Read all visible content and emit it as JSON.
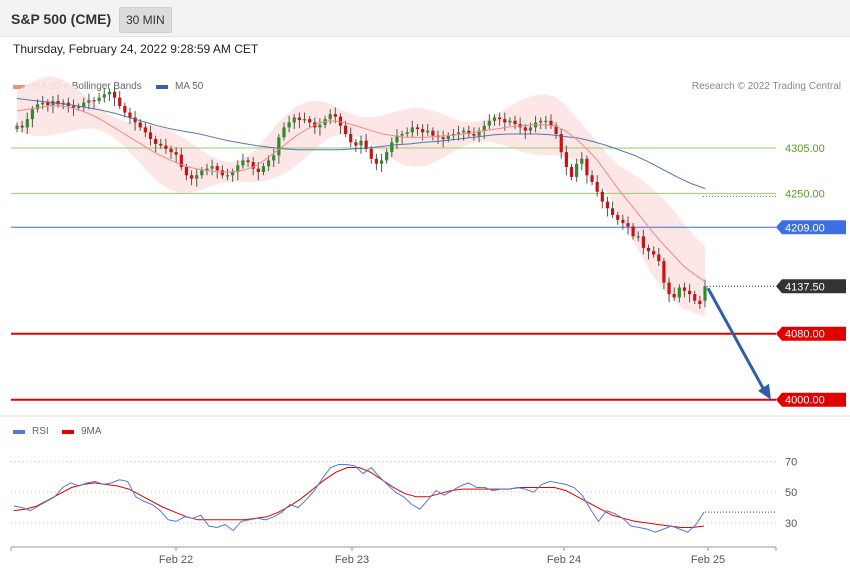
{
  "header": {
    "title": "S&P 500 (CME)",
    "interval": "30 MIN"
  },
  "timestamp": "Thursday, February 24, 2022 9:28:59 AM CET",
  "legend": {
    "ma20_label": "MA 20 + Bollinger Bands",
    "ma50_label": "MA 50",
    "credit": "Research © 2022 Trading Central",
    "rsi_label": "RSI",
    "rsi_ma_label": "9MA"
  },
  "colors": {
    "ma20": "#f28b82",
    "bands_fill": "#fde3e3",
    "ma50": "#3f5fa5",
    "up_candle": "#2e8b2e",
    "down_candle": "#cc1111",
    "resistance": "#9acd68",
    "pivot": "#3d6fe0",
    "support": "#e00000",
    "forecast_arrow": "#2f5fa8",
    "rsi": "#5577dd",
    "rsi_ma": "#e00000"
  },
  "chart_data": [
    {
      "type": "candlestick",
      "title": "S&P 500 (CME)",
      "interval": "30 MIN",
      "x_labels": [
        "Feb 22",
        "Feb 23",
        "Feb 24",
        "Feb 25"
      ],
      "ylim": [
        3990,
        4385
      ],
      "last_price": 4137.5,
      "levels": [
        {
          "value": 4305.0,
          "label": "4305.00",
          "kind": "resistance"
        },
        {
          "value": 4250.0,
          "label": "4250.00",
          "kind": "resistance"
        },
        {
          "value": 4209.0,
          "label": "4209.00",
          "kind": "pivot"
        },
        {
          "value": 4137.5,
          "label": "4137.50",
          "kind": "last"
        },
        {
          "value": 4080.0,
          "label": "4080.00",
          "kind": "support"
        },
        {
          "value": 4000.0,
          "label": "4000.00",
          "kind": "support"
        }
      ],
      "close_series": [
        4332,
        4330,
        4340,
        4352,
        4358,
        4360,
        4357,
        4362,
        4358,
        4360,
        4356,
        4354,
        4355,
        4360,
        4363,
        4362,
        4366,
        4370,
        4373,
        4366,
        4356,
        4348,
        4342,
        4336,
        4330,
        4324,
        4316,
        4310,
        4308,
        4304,
        4300,
        4297,
        4282,
        4272,
        4268,
        4272,
        4278,
        4280,
        4283,
        4278,
        4272,
        4272,
        4276,
        4284,
        4290,
        4288,
        4280,
        4276,
        4283,
        4290,
        4296,
        4318,
        4330,
        4336,
        4342,
        4339,
        4340,
        4336,
        4330,
        4333,
        4340,
        4346,
        4343,
        4332,
        4322,
        4312,
        4308,
        4314,
        4304,
        4292,
        4286,
        4290,
        4300,
        4312,
        4320,
        4322,
        4324,
        4330,
        4328,
        4324,
        4326,
        4320,
        4318,
        4316,
        4320,
        4322,
        4324,
        4326,
        4322,
        4320,
        4326,
        4332,
        4338,
        4342,
        4340,
        4336,
        4338,
        4334,
        4330,
        4326,
        4330,
        4336,
        4338,
        4338,
        4332,
        4322,
        4300,
        4282,
        4270,
        4286,
        4292,
        4272,
        4264,
        4252,
        4240,
        4232,
        4224,
        4218,
        4214,
        4210,
        4198,
        4198,
        4184,
        4180,
        4176,
        4168,
        4142,
        4128,
        4124,
        4136,
        4132,
        4128,
        4120,
        4116,
        4140
      ],
      "ma20_series": [
        4350,
        4352,
        4354,
        4356,
        4356,
        4354,
        4350,
        4345,
        4338,
        4330,
        4322,
        4314,
        4306,
        4298,
        4292,
        4286,
        4282,
        4279,
        4277,
        4276,
        4276,
        4278,
        4282,
        4290,
        4300,
        4310,
        4320,
        4328,
        4335,
        4338,
        4337,
        4334,
        4330,
        4326,
        4322,
        4320,
        4318,
        4318,
        4318,
        4319,
        4320,
        4321,
        4323,
        4325,
        4327,
        4329,
        4331,
        4332,
        4333,
        4333,
        4332,
        4326,
        4316,
        4304,
        4290,
        4272,
        4254,
        4238,
        4222,
        4205,
        4190,
        4176,
        4162,
        4152,
        4143
      ],
      "ma50_series": [
        4365,
        4363,
        4361,
        4359,
        4357,
        4354,
        4351,
        4347,
        4342,
        4337,
        4332,
        4328,
        4325,
        4322,
        4318,
        4314,
        4311,
        4308,
        4306,
        4304,
        4303,
        4303,
        4303,
        4303,
        4304,
        4305,
        4307,
        4309,
        4310,
        4312,
        4313,
        4315,
        4317,
        4319,
        4321,
        4322,
        4322,
        4322,
        4321,
        4319,
        4317,
        4313,
        4308,
        4302,
        4296,
        4288,
        4279,
        4270,
        4262,
        4256
      ],
      "last_candle_open": 4120,
      "last_candle_close": 4137.5
    },
    {
      "type": "line",
      "title": "RSI",
      "x_labels": [
        "Feb 22",
        "Feb 23",
        "Feb 24",
        "Feb 25"
      ],
      "ylim": [
        15,
        80
      ],
      "gridlines": [
        70,
        50,
        30
      ],
      "tick_labels": [
        "70",
        "50",
        "30"
      ],
      "series": [
        {
          "name": "RSI",
          "values": [
            41,
            40,
            38,
            41,
            44,
            47,
            53,
            56,
            54,
            56,
            57,
            55,
            56,
            58,
            57,
            47,
            44,
            42,
            38,
            32,
            31,
            34,
            33,
            35,
            28,
            27,
            29,
            25,
            31,
            32,
            33,
            32,
            34,
            37,
            42,
            40,
            45,
            51,
            59,
            66,
            68,
            68,
            67,
            62,
            66,
            60,
            55,
            50,
            47,
            42,
            39,
            45,
            51,
            48,
            51,
            54,
            56,
            53,
            53,
            51,
            52,
            52,
            53,
            52,
            50,
            55,
            57,
            56,
            55,
            53,
            48,
            39,
            31,
            38,
            36,
            33,
            28,
            27,
            26,
            24,
            26,
            28,
            26,
            24,
            29,
            37
          ]
        },
        {
          "name": "9MA",
          "values": [
            38,
            39,
            41,
            45,
            49,
            53,
            55,
            56,
            55,
            54,
            52,
            48,
            44,
            40,
            37,
            34,
            32,
            32,
            32,
            32,
            32,
            33,
            34,
            37,
            41,
            46,
            52,
            58,
            63,
            66,
            66,
            63,
            58,
            53,
            49,
            47,
            47,
            49,
            51,
            52,
            52,
            52,
            52,
            52,
            53,
            53,
            53,
            53,
            51,
            47,
            43,
            39,
            35,
            33,
            31,
            30,
            29,
            28,
            27,
            27,
            28
          ]
        }
      ]
    }
  ]
}
